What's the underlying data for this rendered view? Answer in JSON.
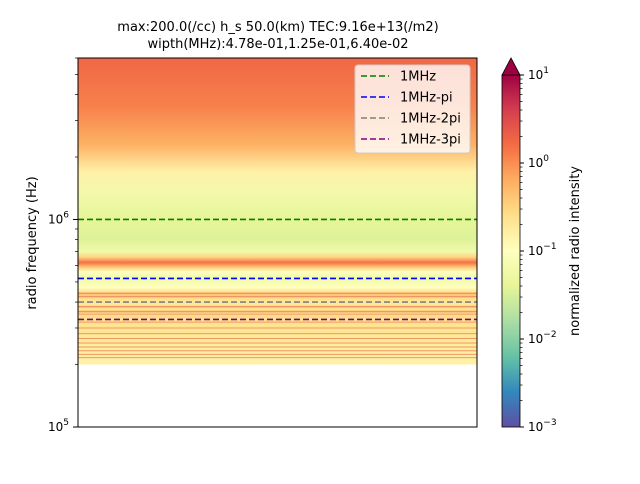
{
  "chart_data": {
    "type": "heatmap",
    "title_line1": "max:200.0(/cc) h_s 50.0(km) TEC:9.16e+13(/m2)",
    "title_line2": "wipth(MHz):4.78e-01,1.25e-01,6.40e-02",
    "ylabel": "radio frequency (Hz)",
    "xlabel": "",
    "yscale": "log",
    "ylim": [
      100000,
      6000000
    ],
    "yticks": [
      {
        "value": 100000,
        "base": "10",
        "exp": "5"
      },
      {
        "value": 1000000,
        "base": "10",
        "exp": "6"
      }
    ],
    "reference_lines": [
      {
        "name": "1MHz",
        "value": 1000000,
        "color": "#008000"
      },
      {
        "name": "1MHz-pi",
        "value": 520000,
        "color": "#0000ff"
      },
      {
        "name": "1MHz-2pi",
        "value": 400000,
        "color": "#808080"
      },
      {
        "name": "1MHz-3pi",
        "value": 330000,
        "color": "#800080"
      }
    ],
    "legend_position": "top-right",
    "intensity_profile": [
      {
        "freq": 6000000,
        "intensity": 1.8
      },
      {
        "freq": 3500000,
        "intensity": 1.2
      },
      {
        "freq": 2300000,
        "intensity": 0.6
      },
      {
        "freq": 1700000,
        "intensity": 0.15
      },
      {
        "freq": 1300000,
        "intensity": 0.06
      },
      {
        "freq": 1000000,
        "intensity": 0.04
      },
      {
        "freq": 800000,
        "intensity": 0.035
      },
      {
        "freq": 700000,
        "intensity": 0.06
      },
      {
        "freq": 660000,
        "intensity": 0.3
      },
      {
        "freq": 620000,
        "intensity": 1.5
      },
      {
        "freq": 590000,
        "intensity": 0.4
      },
      {
        "freq": 560000,
        "intensity": 0.1
      },
      {
        "freq": 520000,
        "intensity": 0.06
      },
      {
        "freq": 470000,
        "intensity": 0.1
      },
      {
        "freq": 440000,
        "intensity": 0.3
      },
      {
        "freq": 400000,
        "intensity": 0.2
      },
      {
        "freq": 340000,
        "intensity": 0.25
      },
      {
        "freq": 250000,
        "intensity": 0.18
      },
      {
        "freq": 205000,
        "intensity": 0.15
      },
      {
        "freq": 200000,
        "intensity": 0.15
      }
    ],
    "emission_lines_hz": [
      440000,
      425000,
      380000,
      360000,
      350000,
      320000,
      300000,
      282000,
      267000,
      254000,
      243000,
      233000,
      224000,
      216000
    ],
    "colorbar": {
      "label": "normalized radio intensity",
      "scale": "log",
      "range": [
        0.001,
        10
      ],
      "ticks": [
        {
          "value": 10,
          "base": "10",
          "exp": "1"
        },
        {
          "value": 1,
          "base": "10",
          "exp": "0"
        },
        {
          "value": 0.1,
          "base": "10",
          "exp": "−1"
        },
        {
          "value": 0.01,
          "base": "10",
          "exp": "−2"
        },
        {
          "value": 0.001,
          "base": "10",
          "exp": "−3"
        }
      ],
      "colormap": "Spectral_r"
    }
  }
}
